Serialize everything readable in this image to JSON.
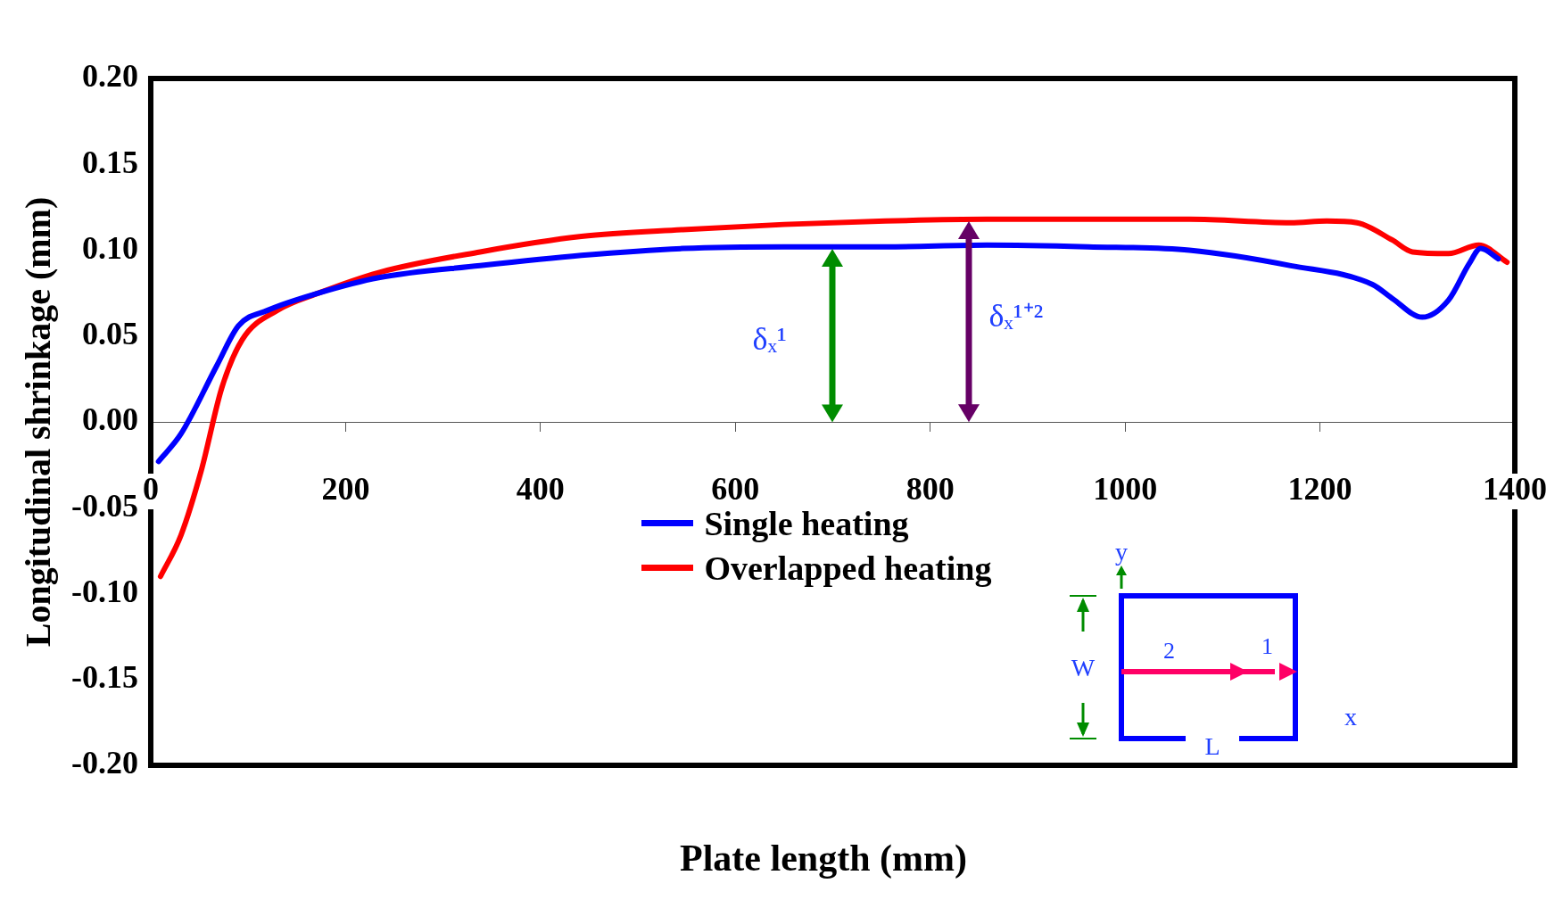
{
  "chart_data": {
    "type": "line",
    "xlabel": "Plate length (mm)",
    "ylabel": "Longitudinal shrinkage (mm)",
    "xlim": [
      0,
      1400
    ],
    "xticks": [
      0,
      200,
      400,
      600,
      800,
      1000,
      1200,
      1400
    ],
    "ylim": [
      -0.2,
      0.2
    ],
    "yticks": [
      {
        "value": -0.2,
        "label": "-0.20"
      },
      {
        "value": -0.15,
        "label": "-0.15"
      },
      {
        "value": -0.1,
        "label": "-0.10"
      },
      {
        "value": -0.05,
        "label": "-0.05"
      },
      {
        "value": 0,
        "label": "0.00"
      },
      {
        "value": 0.05,
        "label": "0.05"
      },
      {
        "value": 0.1,
        "label": "0.10"
      },
      {
        "value": 0.15,
        "label": "0.15"
      },
      {
        "value": 0.2,
        "label": "0.20"
      }
    ],
    "legend": "bottom",
    "marker": "none",
    "line_style": "solid",
    "series": [
      {
        "name": "Single heating",
        "color": "#0000ff",
        "x": [
          8,
          31,
          68,
          90,
          120,
          172,
          234,
          338,
          442,
          546,
          650,
          754,
          858,
          962,
          1066,
          1170,
          1254,
          1274,
          1305,
          1332,
          1353,
          1365,
          1383
        ],
        "values": [
          -0.023,
          -0.007,
          0.033,
          0.056,
          0.065,
          0.075,
          0.084,
          0.091,
          0.097,
          0.101,
          0.102,
          0.102,
          0.103,
          0.102,
          0.1,
          0.091,
          0.08,
          0.072,
          0.061,
          0.071,
          0.092,
          0.101,
          0.095
        ]
      },
      {
        "name": "Overlapped heating",
        "color": "#ff0000",
        "x": [
          10,
          31,
          52,
          73,
          94,
          130,
          172,
          234,
          338,
          442,
          546,
          650,
          754,
          858,
          962,
          1066,
          1170,
          1207,
          1238,
          1274,
          1295,
          1332,
          1363,
          1392
        ],
        "values": [
          -0.09,
          -0.066,
          -0.028,
          0.02,
          0.048,
          0.065,
          0.075,
          0.087,
          0.099,
          0.108,
          0.112,
          0.115,
          0.117,
          0.118,
          0.118,
          0.118,
          0.116,
          0.117,
          0.116,
          0.106,
          0.099,
          0.098,
          0.103,
          0.093
        ]
      }
    ],
    "annotations": [
      {
        "text": "δₓ¹",
        "x": 700,
        "y": 0.101
      },
      {
        "text": "δₓ¹⁺²",
        "x": 840,
        "y": 0.117
      },
      "y",
      "W",
      "2",
      "1",
      "L",
      "x"
    ]
  }
}
